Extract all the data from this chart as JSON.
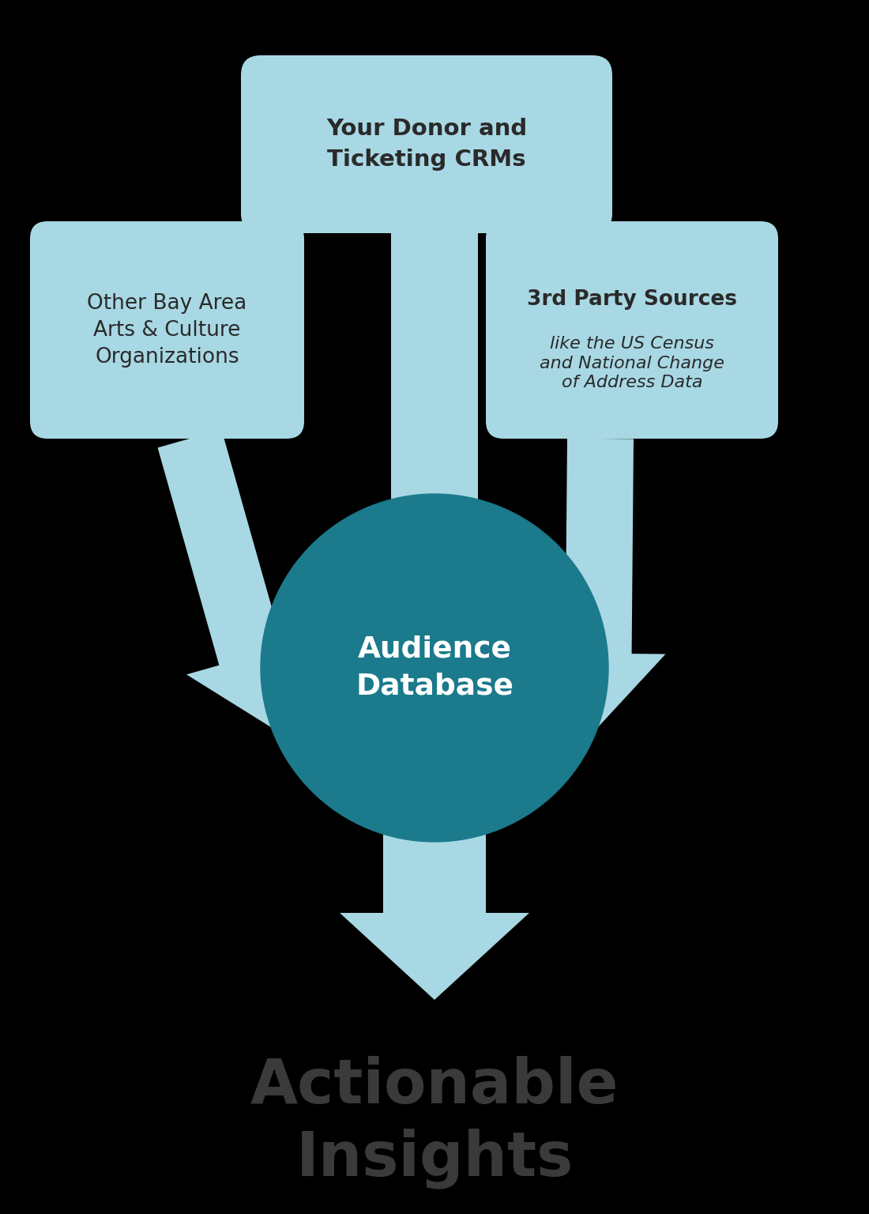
{
  "background_color": "#000000",
  "light_blue": "#a8d8e4",
  "teal": "#1b7a8c",
  "dark_text": "#2a2a2a",
  "white": "#ffffff",
  "insights_color": "#3a3a3a",
  "box_top_text": "Your Donor and\nTicketing CRMs",
  "box_left_text": "Other Bay Area\nArts & Culture\nOrganizations",
  "box_right_title": "3rd Party Sources",
  "box_right_subtitle": "like the US Census\nand National Change\nof Address Data",
  "circle_text": "Audience\nDatabase",
  "bottom_text": "Actionable\nInsights",
  "figsize": [
    11.0,
    15.36
  ],
  "dpi": 100
}
